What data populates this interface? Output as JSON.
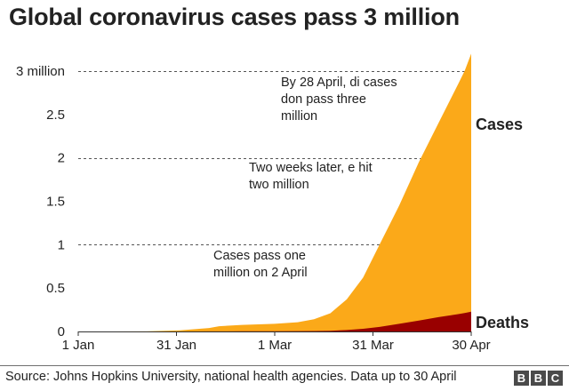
{
  "chart_data": {
    "type": "area",
    "title": "Global coronavirus cases pass 3 million",
    "xlabel": "",
    "ylabel": "",
    "y_unit_label": "million",
    "ylim": [
      0,
      3.2
    ],
    "yticks": [
      {
        "value": 0,
        "label": "0"
      },
      {
        "value": 0.5,
        "label": "0.5"
      },
      {
        "value": 1,
        "label": "1"
      },
      {
        "value": 1.5,
        "label": "1.5"
      },
      {
        "value": 2,
        "label": "2"
      },
      {
        "value": 2.5,
        "label": "2.5"
      },
      {
        "value": 3,
        "label": "3 million"
      }
    ],
    "dashed_gridlines_at": [
      1,
      2,
      3
    ],
    "xticks": [
      "1 Jan",
      "31 Jan",
      "1 Mar",
      "31 Mar",
      "30 Apr"
    ],
    "x_dates": [
      "2020-01-01",
      "2020-01-22",
      "2020-02-01",
      "2020-02-10",
      "2020-02-13",
      "2020-02-20",
      "2020-03-01",
      "2020-03-08",
      "2020-03-13",
      "2020-03-18",
      "2020-03-23",
      "2020-03-28",
      "2020-04-02",
      "2020-04-08",
      "2020-04-14",
      "2020-04-20",
      "2020-04-26",
      "2020-04-28",
      "2020-04-30"
    ],
    "series": [
      {
        "name": "Cases",
        "color": "#fba919",
        "values": [
          0,
          0.0006,
          0.012,
          0.04,
          0.06,
          0.076,
          0.088,
          0.106,
          0.14,
          0.21,
          0.37,
          0.62,
          1.0,
          1.45,
          1.95,
          2.4,
          2.85,
          3.0,
          3.2
        ]
      },
      {
        "name": "Deaths",
        "color": "#990000",
        "values": [
          0,
          0,
          0.0003,
          0.001,
          0.0014,
          0.002,
          0.003,
          0.0036,
          0.005,
          0.0085,
          0.016,
          0.031,
          0.052,
          0.088,
          0.125,
          0.165,
          0.2,
          0.212,
          0.228
        ]
      }
    ],
    "annotations": [
      {
        "lines": [
          "By 28 April, di cases",
          "don pass three",
          "million"
        ]
      },
      {
        "lines": [
          "Two weeks later, e hit",
          "two million"
        ]
      },
      {
        "lines": [
          "Cases pass one",
          "million on 2 April"
        ]
      }
    ],
    "grid": false
  },
  "footer": {
    "source": "Source: Johns Hopkins University, national health agencies. Data up to 30 April",
    "logo": [
      "B",
      "B",
      "C"
    ]
  }
}
